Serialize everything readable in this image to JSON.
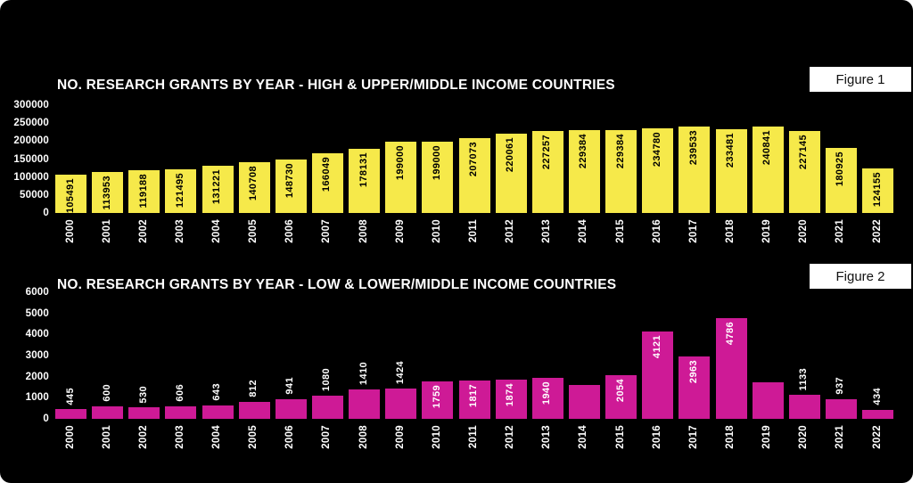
{
  "background_color": "#000000",
  "text_color": "#ffffff",
  "chart_data": [
    {
      "type": "bar",
      "title": "NO. RESEARCH GRANTS BY YEAR - HIGH & UPPER/MIDDLE INCOME COUNTRIES",
      "figure_label": "Figure 1",
      "bar_color": "#f6e94a",
      "bar_label_color": "#000000",
      "axis_text_color": "#ffffff",
      "legend": "none",
      "grid": "off",
      "xlabel": "",
      "ylabel": "",
      "ylim": [
        0,
        300000
      ],
      "yticks": [
        300000,
        250000,
        200000,
        150000,
        100000,
        50000,
        0
      ],
      "categories": [
        "2000",
        "2001",
        "2002",
        "2003",
        "2004",
        "2005",
        "2006",
        "2007",
        "2008",
        "2009",
        "2010",
        "2011",
        "2012",
        "2013",
        "2014",
        "2015",
        "2016",
        "2017",
        "2018",
        "2019",
        "2020",
        "2021",
        "2022"
      ],
      "values": [
        105491,
        113953,
        119188,
        121495,
        131221,
        140708,
        148730,
        166049,
        178131,
        199000,
        199000,
        207073,
        220061,
        227257,
        229384,
        229384,
        234780,
        239533,
        233481,
        240841,
        227145,
        180925,
        124155
      ],
      "bar_labels": [
        "105491",
        "113953",
        "119188",
        "121495",
        "131221",
        "140708",
        "148730",
        "166049",
        "178131",
        "199000",
        "199000",
        "207073",
        "220061",
        "227257",
        "229384",
        "229384",
        "234780",
        "239533",
        "233481",
        "240841",
        "227145",
        "180925",
        "124155"
      ],
      "label_placement": [
        "inside",
        "inside",
        "inside",
        "inside",
        "inside",
        "inside",
        "inside",
        "inside",
        "inside",
        "inside",
        "inside",
        "inside",
        "inside",
        "inside",
        "inside",
        "inside",
        "inside",
        "inside",
        "inside",
        "inside",
        "inside",
        "inside",
        "inside"
      ]
    },
    {
      "type": "bar",
      "title": "NO. RESEARCH GRANTS BY YEAR - LOW & LOWER/MIDDLE INCOME COUNTRIES",
      "figure_label": "Figure 2",
      "bar_color": "#ce1a96",
      "bar_label_color": "#ffffff",
      "axis_text_color": "#ffffff",
      "legend": "none",
      "grid": "off",
      "xlabel": "",
      "ylabel": "",
      "ylim": [
        0,
        6000
      ],
      "yticks": [
        6000,
        5000,
        4000,
        3000,
        2000,
        1000,
        0
      ],
      "categories": [
        "2000",
        "2001",
        "2002",
        "2003",
        "2004",
        "2005",
        "2006",
        "2007",
        "2008",
        "2009",
        "2010",
        "2011",
        "2012",
        "2013",
        "2014",
        "2015",
        "2016",
        "2017",
        "2018",
        "2019",
        "2020",
        "2021",
        "2022"
      ],
      "values": [
        445,
        600,
        530,
        606,
        643,
        812,
        941,
        1080,
        1410,
        1424,
        1759,
        1817,
        1874,
        1940,
        1600,
        2054,
        4121,
        2963,
        4786,
        1750,
        1133,
        937,
        434
      ],
      "bar_labels": [
        "445",
        "600",
        "530",
        "606",
        "643",
        "812",
        "941",
        "1080",
        "1410",
        "1424",
        "1759",
        "1817",
        "1874",
        "1940",
        "",
        "2054",
        "4121",
        "2963",
        "4786",
        "",
        "1133",
        "937",
        "434"
      ],
      "label_placement": [
        "above",
        "above",
        "above",
        "above",
        "above",
        "above",
        "above",
        "above",
        "above",
        "above",
        "inside",
        "inside",
        "inside",
        "inside",
        "none",
        "inside",
        "inside",
        "inside",
        "inside",
        "none",
        "above",
        "above",
        "above"
      ]
    }
  ]
}
